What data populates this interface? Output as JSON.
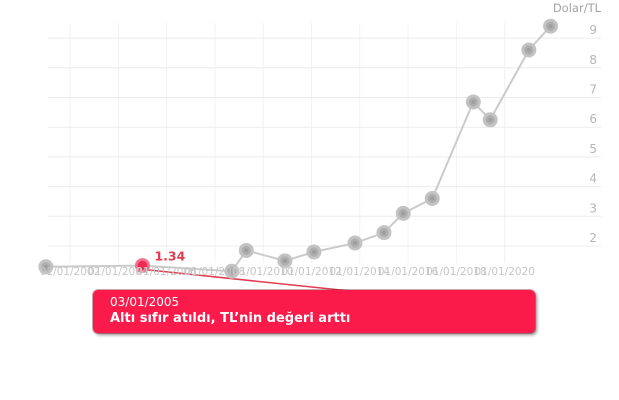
{
  "chart_data": {
    "type": "line",
    "title": "Dolar/TL",
    "x_axis": {
      "tick_years": [
        2002,
        2004,
        2006,
        2008,
        2010,
        2012,
        2014,
        2016,
        2018,
        2020
      ],
      "tick_labels": [
        "01/01/2002",
        "01/01/2004",
        "01/01/2006",
        "01/01/2008",
        "01/01/2010",
        "01/01/2012",
        "01/01/2014",
        "01/01/2016",
        "01/01/2018",
        "01/01/2020"
      ],
      "range_years_visible": [
        2001,
        2022
      ]
    },
    "y_axis": {
      "ticks": [
        2,
        3,
        4,
        5,
        6,
        7,
        8,
        9
      ],
      "range": [
        1,
        9.5
      ],
      "side": "right"
    },
    "grid": true,
    "legend": "none",
    "series": [
      {
        "name": "Dolar/TL",
        "points": [
          {
            "year": 2001.0,
            "value": 1.3
          },
          {
            "year": 2005.0,
            "value": 1.34,
            "highlight": true,
            "label": "1.34",
            "date": "03/01/2005"
          },
          {
            "year": 2008.7,
            "value": 1.15
          },
          {
            "year": 2009.3,
            "value": 1.85
          },
          {
            "year": 2010.9,
            "value": 1.5
          },
          {
            "year": 2012.1,
            "value": 1.8
          },
          {
            "year": 2013.8,
            "value": 2.1
          },
          {
            "year": 2015.0,
            "value": 2.45
          },
          {
            "year": 2015.8,
            "value": 3.1
          },
          {
            "year": 2017.0,
            "value": 3.6
          },
          {
            "year": 2018.7,
            "value": 6.85
          },
          {
            "year": 2019.4,
            "value": 6.25
          },
          {
            "year": 2021.0,
            "value": 8.6
          },
          {
            "year": 2021.9,
            "value": 9.4
          }
        ]
      }
    ]
  },
  "tooltip": {
    "date": "03/01/2005",
    "text": "Altı sıfır atıldı, TL’nin değeri arttı"
  },
  "colors": {
    "accent_red": "#fa1b4b",
    "point_red": "#ee2a55",
    "point_red_ring": "#f4728c",
    "label_red": "#e23c50",
    "line_gray": "#cbcbcb",
    "marker_gray_outer": "#c3c3c3",
    "marker_gray_mid": "#aeaeae",
    "marker_gray_center": "#9e9e9e",
    "grid_gray": "#ececec",
    "axis_text_gray": "#c6c6c6"
  }
}
